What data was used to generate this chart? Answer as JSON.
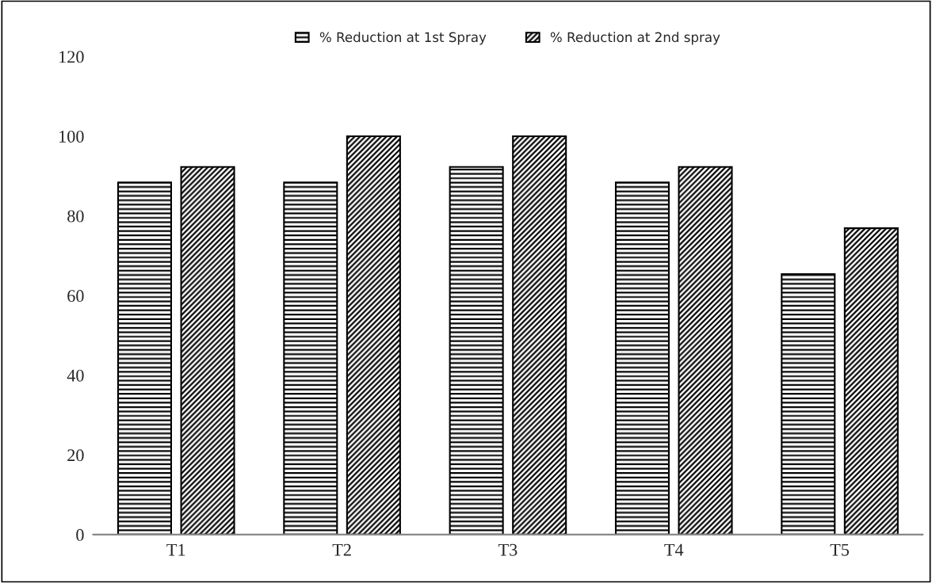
{
  "chart_data": {
    "type": "bar",
    "categories": [
      "T1",
      "T2",
      "T3",
      "T4",
      "T5"
    ],
    "series": [
      {
        "name": "% Reduction at 1st Spray",
        "color": "#000000",
        "values": [
          88.4,
          88.4,
          92.3,
          88.4,
          65.4
        ]
      },
      {
        "name": "% Reduction at 2nd spray",
        "color": "#000000",
        "values": [
          92.3,
          100,
          100,
          92.3,
          76.9
        ]
      }
    ],
    "ylim": [
      0,
      120
    ],
    "yticks": [
      0,
      20,
      40,
      60,
      80,
      100,
      120
    ],
    "grid": false,
    "legend": "top"
  }
}
